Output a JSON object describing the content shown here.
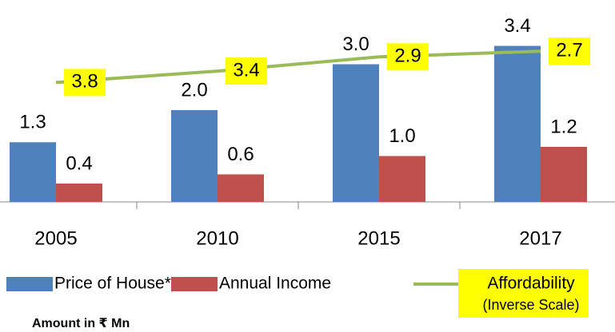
{
  "chart_data": {
    "type": "bar",
    "categories": [
      "2005",
      "2010",
      "2015",
      "2017"
    ],
    "series": [
      {
        "name": "Price of House*",
        "color": "#4f81bd",
        "values": [
          1.3,
          2.0,
          3.0,
          3.4
        ],
        "value_labels": [
          "1.3",
          "2.0",
          "3.0",
          "3.4"
        ]
      },
      {
        "name": "Annual Income",
        "color": "#c0504d",
        "values": [
          0.4,
          0.6,
          1.0,
          1.2
        ],
        "value_labels": [
          "0.4",
          "0.6",
          "1.0",
          "1.2"
        ]
      },
      {
        "name": "Affordability",
        "type": "line",
        "axis": "y2",
        "color": "#9bbb59",
        "label_color": "#ffff00",
        "values": [
          3.8,
          3.4,
          2.9,
          2.7
        ]
      }
    ],
    "ylim": [
      0,
      4.4
    ],
    "y2lim": [
      0.9,
      8.0
    ],
    "y2_inverse": true,
    "legend_note": "(Inverse Scale)",
    "note": "Amount in ₹ Mn"
  }
}
